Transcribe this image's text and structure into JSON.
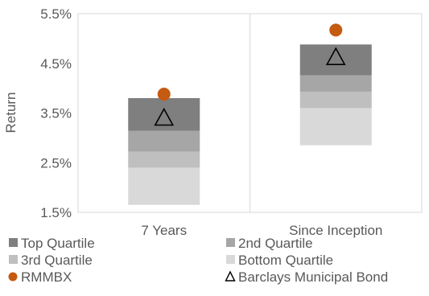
{
  "chart_data": {
    "type": "bar",
    "title": "",
    "xlabel": "",
    "ylabel": "Return",
    "ylim": [
      1.5,
      5.5
    ],
    "yticks": [
      "1.5%",
      "2.5%",
      "3.5%",
      "4.5%",
      "5.5%"
    ],
    "ytick_values": [
      1.5,
      2.5,
      3.5,
      4.5,
      5.5
    ],
    "grid": "vertical separators and outer frame",
    "categories": [
      "7 Years",
      "Since Inception"
    ],
    "bands": [
      {
        "name": "Bottom Quartile",
        "color": "#d9d9d9",
        "low": [
          1.65,
          2.85
        ],
        "high": [
          2.4,
          3.6
        ]
      },
      {
        "name": "3rd Quartile",
        "color": "#bfbfbf",
        "low": [
          2.4,
          3.6
        ],
        "high": [
          2.72,
          3.93
        ]
      },
      {
        "name": "2nd Quartile",
        "color": "#a6a6a6",
        "low": [
          2.72,
          3.93
        ],
        "high": [
          3.14,
          4.26
        ]
      },
      {
        "name": "Top Quartile",
        "color": "#7f7f7f",
        "low": [
          3.14,
          4.26
        ],
        "high": [
          3.8,
          4.88
        ]
      }
    ],
    "series": [
      {
        "name": "RMMBX",
        "marker": "circle",
        "color": "#c55a11",
        "values": [
          3.88,
          5.17
        ]
      },
      {
        "name": "Barclays Municipal Bond",
        "marker": "triangle",
        "color": "#000000",
        "values": [
          3.38,
          4.6
        ]
      }
    ],
    "legend": {
      "placement": "bottom",
      "items": [
        {
          "label": "Top Quartile",
          "color": "#7f7f7f",
          "shape": "square"
        },
        {
          "label": "2nd Quartile",
          "color": "#a6a6a6",
          "shape": "square"
        },
        {
          "label": "3rd Quartile",
          "color": "#bfbfbf",
          "shape": "square"
        },
        {
          "label": "Bottom Quartile",
          "color": "#d9d9d9",
          "shape": "square"
        },
        {
          "label": "RMMBX",
          "color": "#c55a11",
          "shape": "circle"
        },
        {
          "label": "Barclays Municipal Bond",
          "color": "#000000",
          "shape": "triangle"
        }
      ]
    }
  }
}
